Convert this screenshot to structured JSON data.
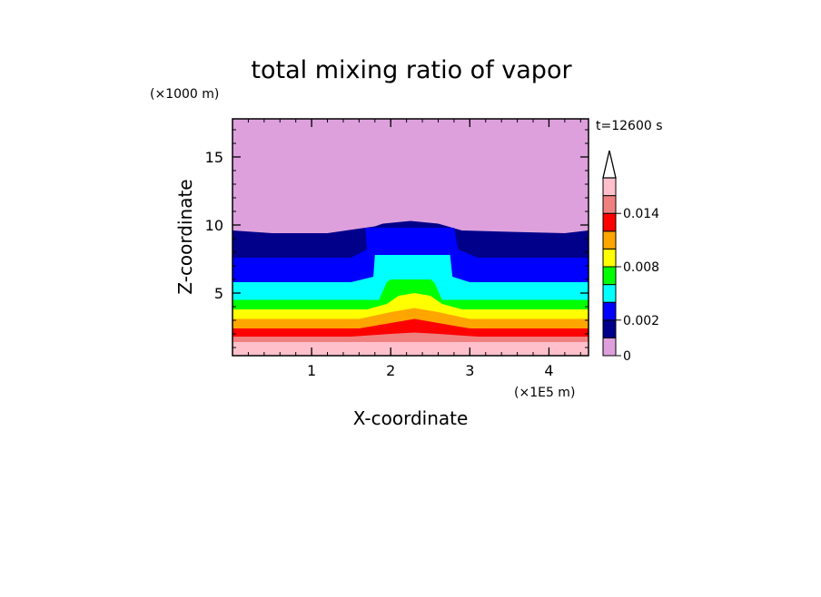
{
  "chart_data": {
    "type": "heatmap",
    "title": "total mixing ratio of vapor",
    "xlabel": "X-coordinate",
    "ylabel": "Z-coordinate",
    "x_unit": "(×1E5 m)",
    "y_unit": "(×1000 m)",
    "time_label": "t=12600 s",
    "xlim": [
      0,
      4.5
    ],
    "ylim": [
      0.4,
      17.8
    ],
    "x_ticks": [
      "1",
      "2",
      "3",
      "4"
    ],
    "y_ticks": [
      "5",
      "10",
      "15"
    ],
    "colorbar": {
      "levels": [
        0,
        0.001,
        0.002,
        0.004,
        0.006,
        0.008,
        0.01,
        0.012,
        0.014,
        0.016
      ],
      "labels": [
        "0",
        "0.002",
        "0.008",
        "0.014"
      ],
      "colors": [
        "#dda0dd",
        "#00008b",
        "#0000ff",
        "#00ffff",
        "#00ff00",
        "#ffff00",
        "#ffa500",
        "#ff0000",
        "#f08080",
        "#ffc0cb"
      ],
      "extend_max": true
    },
    "contour_bands": [
      {
        "level": "0.016+",
        "color": "#ffc0cb",
        "top": [
          [
            0,
            1.4
          ],
          [
            4.5,
            1.4
          ]
        ]
      },
      {
        "level": "0.014",
        "color": "#f08080",
        "top": [
          [
            0,
            1.8
          ],
          [
            1.5,
            1.8
          ],
          [
            2.0,
            2.0
          ],
          [
            2.3,
            2.1
          ],
          [
            2.6,
            2.0
          ],
          [
            3.1,
            1.8
          ],
          [
            4.5,
            1.8
          ]
        ]
      },
      {
        "level": "0.012",
        "color": "#ff0000",
        "top": [
          [
            0,
            2.4
          ],
          [
            1.6,
            2.4
          ],
          [
            2.0,
            2.8
          ],
          [
            2.3,
            3.1
          ],
          [
            2.6,
            2.8
          ],
          [
            3.0,
            2.4
          ],
          [
            4.5,
            2.4
          ]
        ]
      },
      {
        "level": "0.010",
        "color": "#ffa500",
        "top": [
          [
            0,
            3.1
          ],
          [
            1.6,
            3.1
          ],
          [
            2.0,
            3.6
          ],
          [
            2.3,
            3.9
          ],
          [
            2.6,
            3.6
          ],
          [
            3.0,
            3.1
          ],
          [
            4.5,
            3.1
          ]
        ]
      },
      {
        "level": "0.008",
        "color": "#ffff00",
        "top": [
          [
            0,
            3.8
          ],
          [
            1.7,
            3.8
          ],
          [
            1.95,
            4.2
          ],
          [
            2.1,
            4.8
          ],
          [
            2.3,
            5.0
          ],
          [
            2.5,
            4.8
          ],
          [
            2.65,
            4.2
          ],
          [
            2.9,
            3.8
          ],
          [
            4.5,
            3.8
          ]
        ]
      },
      {
        "level": "0.006",
        "color": "#00ff00",
        "top": [
          [
            0,
            4.5
          ],
          [
            1.85,
            4.5
          ],
          [
            1.95,
            5.8
          ],
          [
            2.0,
            6.0
          ],
          [
            2.5,
            6.0
          ],
          [
            2.55,
            5.8
          ],
          [
            2.65,
            4.5
          ],
          [
            4.5,
            4.5
          ]
        ]
      },
      {
        "level": "0.004",
        "color": "#00ffff",
        "top": [
          [
            0,
            5.8
          ],
          [
            1.5,
            5.8
          ],
          [
            1.78,
            6.2
          ],
          [
            1.8,
            7.8
          ],
          [
            2.75,
            7.8
          ],
          [
            2.78,
            6.2
          ],
          [
            3.0,
            5.8
          ],
          [
            4.5,
            5.8
          ]
        ]
      },
      {
        "level": "0.002",
        "color": "#0000ff",
        "top": [
          [
            0,
            7.6
          ],
          [
            1.5,
            7.6
          ],
          [
            1.7,
            8.2
          ],
          [
            1.68,
            9.8
          ],
          [
            2.8,
            9.8
          ],
          [
            2.85,
            8.2
          ],
          [
            3.1,
            7.6
          ],
          [
            4.5,
            7.6
          ]
        ]
      },
      {
        "level": "0.001",
        "color": "#00008b",
        "top": [
          [
            0,
            9.6
          ],
          [
            0.5,
            9.4
          ],
          [
            1.2,
            9.4
          ],
          [
            1.8,
            9.9
          ],
          [
            1.9,
            10.1
          ],
          [
            2.25,
            10.3
          ],
          [
            2.6,
            10.1
          ],
          [
            2.9,
            9.6
          ],
          [
            3.5,
            9.5
          ],
          [
            4.2,
            9.4
          ],
          [
            4.5,
            9.6
          ]
        ]
      }
    ]
  }
}
